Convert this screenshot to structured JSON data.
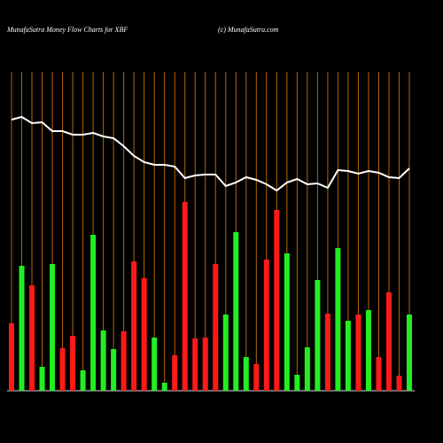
{
  "chart_data": {
    "type": "bar",
    "title": "MunafaSutra  Money Flow  Charts for XBF",
    "subtitle": "(c) MunafaSutra.com",
    "values": [
      76,
      141,
      119,
      27,
      143,
      48,
      62,
      23,
      176,
      68,
      47,
      67,
      146,
      127,
      60,
      9,
      40,
      213,
      59,
      60,
      143,
      86,
      179,
      38,
      30,
      148,
      204,
      155,
      18,
      49,
      125,
      87,
      161,
      79,
      86,
      91,
      38,
      111,
      17,
      86
    ],
    "colors": [
      "#ff1a1a",
      "#22ee22",
      "#ff1a1a",
      "#22ee22",
      "#22ee22",
      "#ff1a1a",
      "#ff1a1a",
      "#22ee22",
      "#22ee22",
      "#22ee22",
      "#22ee22",
      "#ff1a1a",
      "#ff1a1a",
      "#ff1a1a",
      "#22ee22",
      "#22ee22",
      "#ff1a1a",
      "#ff1a1a",
      "#ff1a1a",
      "#ff1a1a",
      "#ff1a1a",
      "#22ee22",
      "#22ee22",
      "#22ee22",
      "#ff1a1a",
      "#ff1a1a",
      "#ff1a1a",
      "#22ee22",
      "#22ee22",
      "#22ee22",
      "#22ee22",
      "#ff1a1a",
      "#22ee22",
      "#22ee22",
      "#ff1a1a",
      "#22ee22",
      "#ff1a1a",
      "#ff1a1a",
      "#ff1a1a",
      "#22ee22"
    ],
    "line": {
      "color": "#ffffff",
      "values": [
        306,
        309,
        302,
        303,
        293,
        293,
        289,
        289,
        291,
        287,
        285,
        276,
        265,
        258,
        255,
        255,
        253,
        240,
        243,
        244,
        244,
        231,
        235,
        241,
        238,
        233,
        226,
        235,
        239,
        233,
        234,
        229,
        249,
        248,
        245,
        248,
        246,
        241,
        240,
        251
      ]
    },
    "ylim": [
      0,
      360
    ],
    "grid_color": "#b8650a"
  }
}
